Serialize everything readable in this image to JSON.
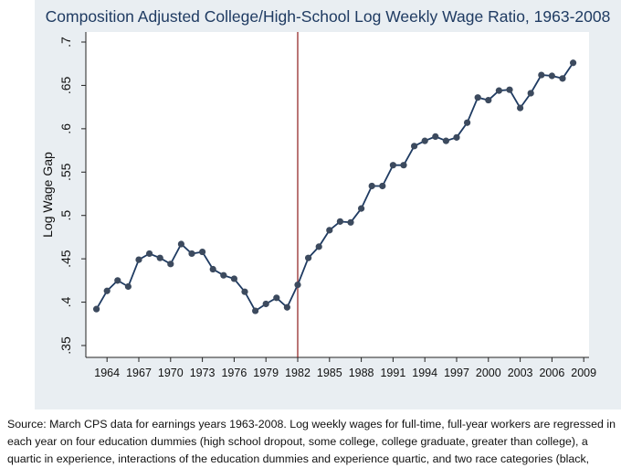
{
  "title": "Composition Adjusted College/High-School Log Weekly Wage Ratio, 1963-2008",
  "chart_data": {
    "type": "line",
    "title": "Composition Adjusted College/High-School Log Weekly Wage Ratio, 1963-2008",
    "xlabel": "",
    "ylabel": "Log Wage Gap",
    "xlim": [
      1962,
      2009.5
    ],
    "ylim": [
      0.35,
      0.7
    ],
    "xticks": [
      "1964",
      "1967",
      "1970",
      "1973",
      "1976",
      "1979",
      "1982",
      "1985",
      "1988",
      "1991",
      "1994",
      "1997",
      "2000",
      "2003",
      "2006",
      "2009"
    ],
    "yticks": [
      ".35",
      ".4",
      ".45",
      ".5",
      ".55",
      ".6",
      ".65",
      ".7"
    ],
    "reference_line_x": 1982,
    "grid": false,
    "series": [
      {
        "x": [
          1963,
          1964,
          1965,
          1966,
          1967,
          1968,
          1969,
          1970,
          1971,
          1972,
          1973,
          1974,
          1975,
          1976,
          1977,
          1978,
          1979,
          1980,
          1981,
          1982,
          1983,
          1984,
          1985,
          1986,
          1987,
          1988,
          1989,
          1990,
          1991,
          1992,
          1993,
          1994,
          1995,
          1996,
          1997,
          1998,
          1999,
          2000,
          2001,
          2002,
          2003,
          2004,
          2005,
          2006,
          2007,
          2008
        ],
        "y": [
          0.392,
          0.413,
          0.425,
          0.418,
          0.449,
          0.456,
          0.451,
          0.444,
          0.467,
          0.456,
          0.458,
          0.438,
          0.431,
          0.427,
          0.412,
          0.39,
          0.398,
          0.405,
          0.394,
          0.42,
          0.451,
          0.464,
          0.483,
          0.493,
          0.492,
          0.508,
          0.534,
          0.534,
          0.558,
          0.558,
          0.58,
          0.586,
          0.591,
          0.586,
          0.59,
          0.607,
          0.636,
          0.633,
          0.644,
          0.645,
          0.624,
          0.641,
          0.662,
          0.661,
          0.658,
          0.676
        ]
      }
    ]
  },
  "caption": {
    "line1": "Source: March CPS data for earnings years 1963-2008. Log weekly wages for full-time, full-year workers are regressed in",
    "line2": "each year on four education dummies (high school dropout, some college, college graduate, greater than college), a",
    "line3": "quartic in experience, interactions of the education dummies and experience quartic, and two race categories (black,"
  },
  "colors": {
    "panel_bg": "#e9eef2",
    "plot_bg": "#ffffff",
    "series": "#1f3b62",
    "marker": "#3c4a5e",
    "reference_line": "#8b1a1a",
    "title": "#1f3b62"
  }
}
